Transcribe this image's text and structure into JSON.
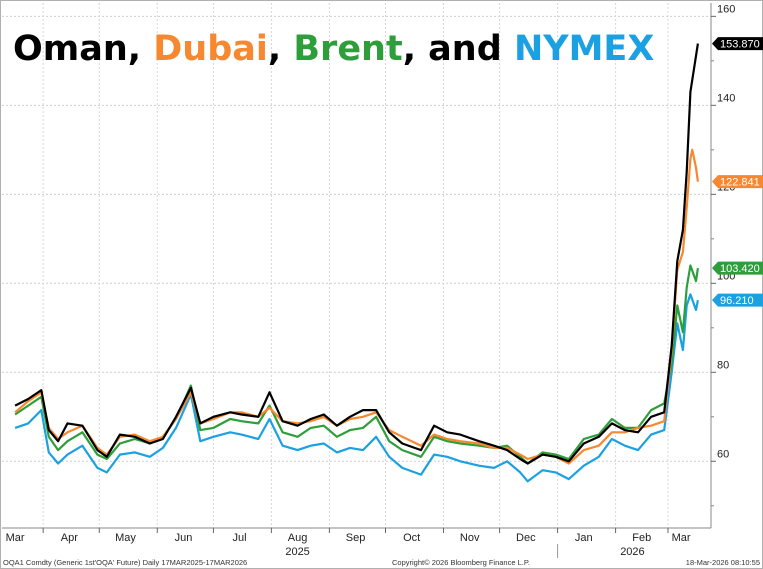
{
  "chart_data": {
    "type": "line",
    "title_parts": [
      {
        "text": "Oman",
        "color": "#000000"
      },
      {
        "text": ", ",
        "color": "#000000"
      },
      {
        "text": "Dubai",
        "color": "#f7882f"
      },
      {
        "text": ", ",
        "color": "#000000"
      },
      {
        "text": "Brent",
        "color": "#2e9e3a"
      },
      {
        "text": ", and ",
        "color": "#000000"
      },
      {
        "text": "NYMEX",
        "color": "#1ba1e2"
      }
    ],
    "xlabel": "",
    "ylabel": "",
    "ylim": [
      45,
      163
    ],
    "y_ticks": [
      60,
      80,
      100,
      120,
      140,
      160
    ],
    "y_tick_labels": [
      "60",
      "80",
      "100",
      "120",
      "140",
      "160"
    ],
    "grid": true,
    "x_ticks": [
      {
        "label": "Mar",
        "date": "2025-03-17"
      },
      {
        "label": "Apr",
        "date": "2025-04-15"
      },
      {
        "label": "May",
        "date": "2025-05-15"
      },
      {
        "label": "Jun",
        "date": "2025-06-15"
      },
      {
        "label": "Jul",
        "date": "2025-07-15"
      },
      {
        "label": "Aug",
        "date": "2025-08-15"
      },
      {
        "label": "Sep",
        "date": "2025-09-15"
      },
      {
        "label": "Oct",
        "date": "2025-10-15"
      },
      {
        "label": "Nov",
        "date": "2025-11-15"
      },
      {
        "label": "Dec",
        "date": "2025-12-15"
      },
      {
        "label": "Jan",
        "date": "2026-01-15"
      },
      {
        "label": "Feb",
        "date": "2026-02-15"
      },
      {
        "label": "Mar",
        "date": "2026-03-08"
      }
    ],
    "year_labels": [
      "2025",
      "2026"
    ],
    "series": [
      {
        "name": "NYMEX",
        "color": "#1ba1e2",
        "end_label": "96.210",
        "points": [
          [
            "2025-03-17",
            67.5
          ],
          [
            "2025-03-24",
            68.5
          ],
          [
            "2025-03-31",
            71.5
          ],
          [
            "2025-04-04",
            62.0
          ],
          [
            "2025-04-09",
            59.5
          ],
          [
            "2025-04-14",
            61.5
          ],
          [
            "2025-04-22",
            63.5
          ],
          [
            "2025-04-30",
            58.5
          ],
          [
            "2025-05-05",
            57.5
          ],
          [
            "2025-05-12",
            61.5
          ],
          [
            "2025-05-20",
            62.0
          ],
          [
            "2025-05-28",
            61.0
          ],
          [
            "2025-06-04",
            63.0
          ],
          [
            "2025-06-11",
            67.5
          ],
          [
            "2025-06-19",
            75.0
          ],
          [
            "2025-06-24",
            64.5
          ],
          [
            "2025-07-01",
            65.5
          ],
          [
            "2025-07-10",
            66.5
          ],
          [
            "2025-07-16",
            66.0
          ],
          [
            "2025-07-25",
            65.0
          ],
          [
            "2025-07-31",
            69.5
          ],
          [
            "2025-08-07",
            63.5
          ],
          [
            "2025-08-15",
            62.5
          ],
          [
            "2025-08-22",
            63.5
          ],
          [
            "2025-08-29",
            64.0
          ],
          [
            "2025-09-05",
            62.0
          ],
          [
            "2025-09-12",
            63.0
          ],
          [
            "2025-09-19",
            62.5
          ],
          [
            "2025-09-26",
            65.5
          ],
          [
            "2025-10-03",
            61.0
          ],
          [
            "2025-10-10",
            58.5
          ],
          [
            "2025-10-20",
            57.0
          ],
          [
            "2025-10-27",
            61.5
          ],
          [
            "2025-11-03",
            61.0
          ],
          [
            "2025-11-10",
            60.0
          ],
          [
            "2025-11-20",
            59.0
          ],
          [
            "2025-11-28",
            58.5
          ],
          [
            "2025-12-05",
            60.0
          ],
          [
            "2025-12-12",
            57.5
          ],
          [
            "2025-12-16",
            55.5
          ],
          [
            "2025-12-24",
            58.0
          ],
          [
            "2025-12-31",
            57.5
          ],
          [
            "2026-01-07",
            56.0
          ],
          [
            "2026-01-15",
            59.0
          ],
          [
            "2026-01-23",
            61.0
          ],
          [
            "2026-01-30",
            65.0
          ],
          [
            "2026-02-06",
            63.5
          ],
          [
            "2026-02-13",
            62.5
          ],
          [
            "2026-02-20",
            66.0
          ],
          [
            "2026-02-27",
            67.0
          ],
          [
            "2026-03-03",
            80.0
          ],
          [
            "2026-03-06",
            91.0
          ],
          [
            "2026-03-09",
            85.0
          ],
          [
            "2026-03-11",
            95.0
          ],
          [
            "2026-03-13",
            97.5
          ],
          [
            "2026-03-16",
            94.0
          ],
          [
            "2026-03-17",
            96.21
          ]
        ]
      },
      {
        "name": "Brent",
        "color": "#2e9e3a",
        "end_label": "103.420",
        "points": [
          [
            "2025-03-17",
            70.5
          ],
          [
            "2025-03-24",
            72.5
          ],
          [
            "2025-03-31",
            74.5
          ],
          [
            "2025-04-04",
            65.5
          ],
          [
            "2025-04-09",
            62.5
          ],
          [
            "2025-04-14",
            64.5
          ],
          [
            "2025-04-22",
            66.5
          ],
          [
            "2025-04-30",
            61.5
          ],
          [
            "2025-05-05",
            60.5
          ],
          [
            "2025-05-12",
            64.0
          ],
          [
            "2025-05-20",
            65.0
          ],
          [
            "2025-05-28",
            64.0
          ],
          [
            "2025-06-04",
            65.5
          ],
          [
            "2025-06-11",
            69.5
          ],
          [
            "2025-06-19",
            77.0
          ],
          [
            "2025-06-24",
            67.0
          ],
          [
            "2025-07-01",
            67.5
          ],
          [
            "2025-07-10",
            69.5
          ],
          [
            "2025-07-16",
            69.0
          ],
          [
            "2025-07-25",
            68.5
          ],
          [
            "2025-07-31",
            72.5
          ],
          [
            "2025-08-07",
            66.5
          ],
          [
            "2025-08-15",
            65.5
          ],
          [
            "2025-08-22",
            67.5
          ],
          [
            "2025-08-29",
            68.0
          ],
          [
            "2025-09-05",
            65.5
          ],
          [
            "2025-09-12",
            67.0
          ],
          [
            "2025-09-19",
            67.5
          ],
          [
            "2025-09-26",
            70.0
          ],
          [
            "2025-10-03",
            64.5
          ],
          [
            "2025-10-10",
            62.5
          ],
          [
            "2025-10-20",
            61.0
          ],
          [
            "2025-10-27",
            65.5
          ],
          [
            "2025-11-03",
            64.5
          ],
          [
            "2025-11-10",
            64.0
          ],
          [
            "2025-11-20",
            63.5
          ],
          [
            "2025-11-28",
            63.0
          ],
          [
            "2025-12-05",
            63.5
          ],
          [
            "2025-12-12",
            61.0
          ],
          [
            "2025-12-16",
            59.5
          ],
          [
            "2025-12-24",
            62.0
          ],
          [
            "2025-12-31",
            61.5
          ],
          [
            "2026-01-07",
            60.5
          ],
          [
            "2026-01-15",
            65.0
          ],
          [
            "2026-01-23",
            66.0
          ],
          [
            "2026-01-30",
            69.5
          ],
          [
            "2026-02-06",
            67.5
          ],
          [
            "2026-02-13",
            67.5
          ],
          [
            "2026-02-20",
            71.5
          ],
          [
            "2026-02-27",
            73.0
          ],
          [
            "2026-03-03",
            82.0
          ],
          [
            "2026-03-06",
            95.0
          ],
          [
            "2026-03-09",
            89.0
          ],
          [
            "2026-03-11",
            99.0
          ],
          [
            "2026-03-13",
            104.0
          ],
          [
            "2026-03-16",
            100.5
          ],
          [
            "2026-03-17",
            103.42
          ]
        ]
      },
      {
        "name": "Dubai",
        "color": "#f7882f",
        "end_label": "122.841",
        "points": [
          [
            "2025-03-17",
            71.0
          ],
          [
            "2025-03-24",
            73.5
          ],
          [
            "2025-03-31",
            75.5
          ],
          [
            "2025-04-04",
            67.5
          ],
          [
            "2025-04-09",
            65.0
          ],
          [
            "2025-04-14",
            66.5
          ],
          [
            "2025-04-22",
            68.0
          ],
          [
            "2025-04-30",
            63.0
          ],
          [
            "2025-05-05",
            61.5
          ],
          [
            "2025-05-12",
            65.5
          ],
          [
            "2025-05-20",
            66.0
          ],
          [
            "2025-05-28",
            64.5
          ],
          [
            "2025-06-04",
            65.5
          ],
          [
            "2025-06-11",
            69.5
          ],
          [
            "2025-06-19",
            75.5
          ],
          [
            "2025-06-24",
            68.5
          ],
          [
            "2025-07-01",
            69.5
          ],
          [
            "2025-07-10",
            71.0
          ],
          [
            "2025-07-16",
            71.0
          ],
          [
            "2025-07-25",
            70.0
          ],
          [
            "2025-07-31",
            72.0
          ],
          [
            "2025-08-07",
            69.0
          ],
          [
            "2025-08-15",
            68.5
          ],
          [
            "2025-08-22",
            69.0
          ],
          [
            "2025-08-29",
            70.0
          ],
          [
            "2025-09-05",
            68.0
          ],
          [
            "2025-09-12",
            69.5
          ],
          [
            "2025-09-19",
            70.0
          ],
          [
            "2025-09-26",
            71.0
          ],
          [
            "2025-10-03",
            67.0
          ],
          [
            "2025-10-10",
            65.5
          ],
          [
            "2025-10-20",
            63.5
          ],
          [
            "2025-10-27",
            66.0
          ],
          [
            "2025-11-03",
            65.0
          ],
          [
            "2025-11-10",
            64.5
          ],
          [
            "2025-11-20",
            64.0
          ],
          [
            "2025-11-28",
            63.0
          ],
          [
            "2025-12-05",
            63.0
          ],
          [
            "2025-12-12",
            61.5
          ],
          [
            "2025-12-16",
            60.5
          ],
          [
            "2025-12-24",
            61.5
          ],
          [
            "2025-12-31",
            61.0
          ],
          [
            "2026-01-07",
            59.5
          ],
          [
            "2026-01-15",
            62.5
          ],
          [
            "2026-01-23",
            63.5
          ],
          [
            "2026-01-30",
            66.5
          ],
          [
            "2026-02-06",
            66.5
          ],
          [
            "2026-02-13",
            67.5
          ],
          [
            "2026-02-20",
            68.0
          ],
          [
            "2026-02-27",
            69.0
          ],
          [
            "2026-03-03",
            85.0
          ],
          [
            "2026-03-06",
            103.0
          ],
          [
            "2026-03-09",
            107.0
          ],
          [
            "2026-03-11",
            117.0
          ],
          [
            "2026-03-13",
            128.0
          ],
          [
            "2026-03-14",
            130.0
          ],
          [
            "2026-03-16",
            126.0
          ],
          [
            "2026-03-17",
            122.841
          ]
        ]
      },
      {
        "name": "Oman",
        "color": "#000000",
        "end_label": "153.870",
        "points": [
          [
            "2025-03-17",
            72.5
          ],
          [
            "2025-03-24",
            74.0
          ],
          [
            "2025-03-31",
            76.0
          ],
          [
            "2025-04-04",
            67.0
          ],
          [
            "2025-04-09",
            64.5
          ],
          [
            "2025-04-14",
            68.5
          ],
          [
            "2025-04-22",
            68.0
          ],
          [
            "2025-04-30",
            62.5
          ],
          [
            "2025-05-05",
            61.0
          ],
          [
            "2025-05-12",
            66.0
          ],
          [
            "2025-05-20",
            65.5
          ],
          [
            "2025-05-28",
            64.0
          ],
          [
            "2025-06-04",
            65.0
          ],
          [
            "2025-06-11",
            70.0
          ],
          [
            "2025-06-19",
            76.5
          ],
          [
            "2025-06-24",
            68.5
          ],
          [
            "2025-07-01",
            70.0
          ],
          [
            "2025-07-10",
            71.0
          ],
          [
            "2025-07-16",
            70.5
          ],
          [
            "2025-07-25",
            70.0
          ],
          [
            "2025-07-31",
            75.5
          ],
          [
            "2025-08-07",
            69.0
          ],
          [
            "2025-08-15",
            68.0
          ],
          [
            "2025-08-22",
            69.5
          ],
          [
            "2025-08-29",
            70.5
          ],
          [
            "2025-09-05",
            68.0
          ],
          [
            "2025-09-12",
            70.0
          ],
          [
            "2025-09-19",
            71.5
          ],
          [
            "2025-09-26",
            71.5
          ],
          [
            "2025-10-03",
            66.5
          ],
          [
            "2025-10-10",
            64.0
          ],
          [
            "2025-10-20",
            62.5
          ],
          [
            "2025-10-27",
            68.0
          ],
          [
            "2025-11-03",
            66.5
          ],
          [
            "2025-11-10",
            66.0
          ],
          [
            "2025-11-20",
            64.5
          ],
          [
            "2025-11-28",
            63.5
          ],
          [
            "2025-12-05",
            62.5
          ],
          [
            "2025-12-12",
            60.5
          ],
          [
            "2025-12-16",
            59.5
          ],
          [
            "2025-12-24",
            61.5
          ],
          [
            "2025-12-31",
            61.0
          ],
          [
            "2026-01-07",
            60.0
          ],
          [
            "2026-01-15",
            64.0
          ],
          [
            "2026-01-23",
            65.5
          ],
          [
            "2026-01-30",
            68.5
          ],
          [
            "2026-02-06",
            67.0
          ],
          [
            "2026-02-13",
            66.5
          ],
          [
            "2026-02-20",
            70.0
          ],
          [
            "2026-02-27",
            71.0
          ],
          [
            "2026-03-03",
            86.0
          ],
          [
            "2026-03-06",
            105.0
          ],
          [
            "2026-03-09",
            112.0
          ],
          [
            "2026-03-11",
            125.0
          ],
          [
            "2026-03-13",
            143.0
          ],
          [
            "2026-03-15",
            148.5
          ],
          [
            "2026-03-17",
            153.87
          ]
        ]
      }
    ]
  },
  "footer": {
    "left": "OQA1 Comdty (Generic 1st'OQA' Future) Daily 17MAR2025-17MAR2026",
    "center": "Copyright© 2026 Bloomberg Finance L.P.",
    "right": "18-Mar-2026 08:10:55"
  }
}
